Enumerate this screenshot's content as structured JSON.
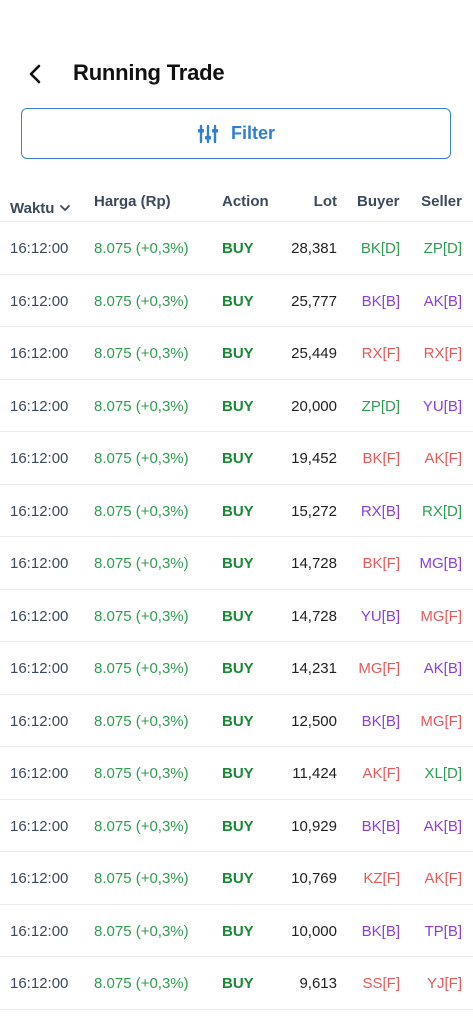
{
  "header": {
    "title": "Running Trade"
  },
  "filter": {
    "label": "Filter"
  },
  "table": {
    "columns": {
      "waktu": "Waktu",
      "harga": "Harga (Rp)",
      "action": "Action",
      "lot": "Lot",
      "buyer": "Buyer",
      "seller": "Seller"
    },
    "rows": [
      {
        "time": "16:12:00",
        "price": "8.075 (+0,3%)",
        "action": "BUY",
        "lot": "28,381",
        "buyer_code": "BK",
        "buyer_type": "[D]",
        "seller_code": "ZP",
        "seller_type": "[D]"
      },
      {
        "time": "16:12:00",
        "price": "8.075 (+0,3%)",
        "action": "BUY",
        "lot": "25,777",
        "buyer_code": "BK",
        "buyer_type": "[B]",
        "seller_code": "AK",
        "seller_type": "[B]"
      },
      {
        "time": "16:12:00",
        "price": "8.075 (+0,3%)",
        "action": "BUY",
        "lot": "25,449",
        "buyer_code": "RX",
        "buyer_type": "[F]",
        "seller_code": "RX",
        "seller_type": "[F]"
      },
      {
        "time": "16:12:00",
        "price": "8.075 (+0,3%)",
        "action": "BUY",
        "lot": "20,000",
        "buyer_code": "ZP",
        "buyer_type": "[D]",
        "seller_code": "YU",
        "seller_type": "[B]"
      },
      {
        "time": "16:12:00",
        "price": "8.075 (+0,3%)",
        "action": "BUY",
        "lot": "19,452",
        "buyer_code": "BK",
        "buyer_type": "[F]",
        "seller_code": "AK",
        "seller_type": "[F]"
      },
      {
        "time": "16:12:00",
        "price": "8.075 (+0,3%)",
        "action": "BUY",
        "lot": "15,272",
        "buyer_code": "RX",
        "buyer_type": "[B]",
        "seller_code": "RX",
        "seller_type": "[D]"
      },
      {
        "time": "16:12:00",
        "price": "8.075 (+0,3%)",
        "action": "BUY",
        "lot": "14,728",
        "buyer_code": "BK",
        "buyer_type": "[F]",
        "seller_code": "MG",
        "seller_type": "[B]"
      },
      {
        "time": "16:12:00",
        "price": "8.075 (+0,3%)",
        "action": "BUY",
        "lot": "14,728",
        "buyer_code": "YU",
        "buyer_type": "[B]",
        "seller_code": "MG",
        "seller_type": "[F]"
      },
      {
        "time": "16:12:00",
        "price": "8.075 (+0,3%)",
        "action": "BUY",
        "lot": "14,231",
        "buyer_code": "MG",
        "buyer_type": "[F]",
        "seller_code": "AK",
        "seller_type": "[B]"
      },
      {
        "time": "16:12:00",
        "price": "8.075 (+0,3%)",
        "action": "BUY",
        "lot": "12,500",
        "buyer_code": "BK",
        "buyer_type": "[B]",
        "seller_code": "MG",
        "seller_type": "[F]"
      },
      {
        "time": "16:12:00",
        "price": "8.075 (+0,3%)",
        "action": "BUY",
        "lot": "11,424",
        "buyer_code": "AK",
        "buyer_type": "[F]",
        "seller_code": "XL",
        "seller_type": "[D]"
      },
      {
        "time": "16:12:00",
        "price": "8.075 (+0,3%)",
        "action": "BUY",
        "lot": "10,929",
        "buyer_code": "BK",
        "buyer_type": "[B]",
        "seller_code": "AK",
        "seller_type": "[B]"
      },
      {
        "time": "16:12:00",
        "price": "8.075 (+0,3%)",
        "action": "BUY",
        "lot": "10,769",
        "buyer_code": "KZ",
        "buyer_type": "[F]",
        "seller_code": "AK",
        "seller_type": "[F]"
      },
      {
        "time": "16:12:00",
        "price": "8.075 (+0,3%)",
        "action": "BUY",
        "lot": "10,000",
        "buyer_code": "BK",
        "buyer_type": "[B]",
        "seller_code": "TP",
        "seller_type": "[B]"
      },
      {
        "time": "16:12:00",
        "price": "8.075 (+0,3%)",
        "action": "BUY",
        "lot": "9,613",
        "buyer_code": "SS",
        "buyer_type": "[F]",
        "seller_code": "YJ",
        "seller_type": "[F]"
      }
    ]
  },
  "colors": {
    "domestic": "#2f9e4f",
    "asing_b": "#8a3ee8",
    "foreign": "#e85a5a",
    "accent": "#2f7fd8"
  },
  "icons": {
    "back": "chevron-left-icon",
    "filter": "sliders-icon",
    "sort": "chevron-down-icon"
  }
}
